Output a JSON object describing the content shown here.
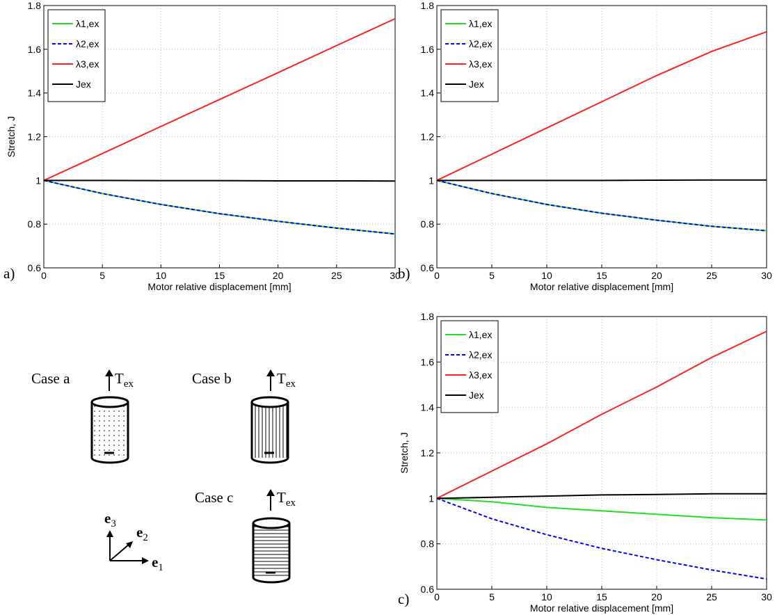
{
  "chart_data": [
    {
      "type": "line",
      "label": "a)",
      "xlabel": "Motor relative displacement [mm]",
      "ylabel": "Stretch, J",
      "x": [
        0,
        5,
        10,
        15,
        20,
        25,
        30
      ],
      "xlim": [
        0,
        30
      ],
      "xticks": [
        0,
        5,
        10,
        15,
        20,
        25,
        30
      ],
      "ylim": [
        0.6,
        1.8
      ],
      "yticks": [
        0.6,
        0.8,
        1,
        1.2,
        1.4,
        1.6,
        1.8
      ],
      "grid": true,
      "legend": "upper left",
      "series": [
        {
          "name": "λ1,ex",
          "color": "#22dd22",
          "style": "solid",
          "values": [
            1,
            0.94,
            0.89,
            0.848,
            0.813,
            0.782,
            0.755
          ]
        },
        {
          "name": "λ2,ex",
          "color": "#0000ff",
          "style": "dashed",
          "values": [
            1,
            0.94,
            0.89,
            0.848,
            0.813,
            0.782,
            0.755
          ]
        },
        {
          "name": "λ3,ex",
          "color": "#ff2020",
          "style": "solid",
          "values": [
            1,
            1.123,
            1.247,
            1.37,
            1.493,
            1.617,
            1.74
          ]
        },
        {
          "name": "Jex",
          "color": "#000000",
          "style": "solid",
          "values": [
            1,
            1,
            0.999,
            0.999,
            0.998,
            0.998,
            0.997
          ]
        }
      ]
    },
    {
      "type": "line",
      "label": "b)",
      "xlabel": "Motor relative displacement [mm]",
      "x": [
        0,
        5,
        10,
        15,
        20,
        25,
        30
      ],
      "xlim": [
        0,
        30
      ],
      "xticks": [
        0,
        5,
        10,
        15,
        20,
        25,
        30
      ],
      "ylim": [
        0.6,
        1.8
      ],
      "yticks": [
        0.6,
        0.8,
        1,
        1.2,
        1.4,
        1.6,
        1.8
      ],
      "grid": true,
      "legend": "upper left",
      "series": [
        {
          "name": "λ1,ex",
          "color": "#22dd22",
          "style": "solid",
          "values": [
            1,
            0.94,
            0.89,
            0.85,
            0.818,
            0.79,
            0.77
          ]
        },
        {
          "name": "λ2,ex",
          "color": "#0000ff",
          "style": "dashed",
          "values": [
            1,
            0.94,
            0.89,
            0.85,
            0.818,
            0.79,
            0.77
          ]
        },
        {
          "name": "λ3,ex",
          "color": "#ff2020",
          "style": "solid",
          "values": [
            1,
            1.12,
            1.24,
            1.36,
            1.48,
            1.59,
            1.68
          ]
        },
        {
          "name": "Jex",
          "color": "#000000",
          "style": "solid",
          "values": [
            1,
            1,
            1,
            1,
            1.001,
            1.002,
            1.002
          ]
        }
      ]
    },
    {
      "type": "line",
      "label": "c)",
      "xlabel": "Motor relative displacement [mm]",
      "ylabel": "Stretch, J",
      "x": [
        0,
        5,
        10,
        15,
        20,
        25,
        30
      ],
      "xlim": [
        0,
        30
      ],
      "xticks": [
        0,
        5,
        10,
        15,
        20,
        25,
        30
      ],
      "ylim": [
        0.6,
        1.8
      ],
      "yticks": [
        0.6,
        0.8,
        1,
        1.2,
        1.4,
        1.6,
        1.8
      ],
      "grid": true,
      "legend": "upper left",
      "series": [
        {
          "name": "λ1,ex",
          "color": "#22dd22",
          "style": "solid",
          "values": [
            1,
            0.985,
            0.96,
            0.945,
            0.93,
            0.915,
            0.905
          ]
        },
        {
          "name": "λ2,ex",
          "color": "#0000ff",
          "style": "dashed",
          "values": [
            1,
            0.91,
            0.84,
            0.78,
            0.73,
            0.685,
            0.645
          ]
        },
        {
          "name": "λ3,ex",
          "color": "#ff2020",
          "style": "solid",
          "values": [
            1,
            1.12,
            1.24,
            1.37,
            1.49,
            1.62,
            1.735
          ]
        },
        {
          "name": "Jex",
          "color": "#000000",
          "style": "solid",
          "values": [
            1,
            1.005,
            1.01,
            1.015,
            1.017,
            1.02,
            1.02
          ]
        }
      ]
    }
  ],
  "diagram": {
    "cases": [
      "Case a",
      "Case b",
      "Case c"
    ],
    "force": "T",
    "force_subscript": "ex",
    "axes": [
      {
        "symbol": "e",
        "index": "3"
      },
      {
        "symbol": "e",
        "index": "2"
      },
      {
        "symbol": "e",
        "index": "1"
      }
    ]
  }
}
